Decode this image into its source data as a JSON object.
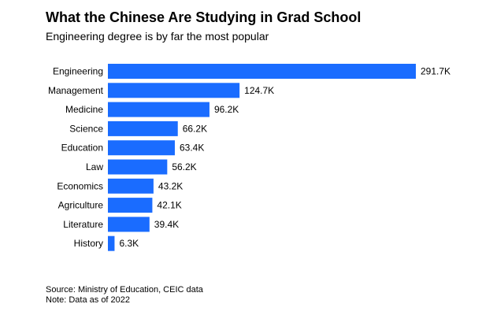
{
  "title": "What the Chinese Are Studying in Grad School",
  "subtitle": "Engineering degree is by far the most popular",
  "source": "Source: Ministry of Education, CEIC data",
  "note": "Note: Data as of 2022",
  "bar_color": "#1a6cff",
  "chart_data": {
    "type": "bar",
    "orientation": "horizontal",
    "unit": "K",
    "categories": [
      "Engineering",
      "Management",
      "Medicine",
      "Science",
      "Education",
      "Law",
      "Economics",
      "Agriculture",
      "Literature",
      "History"
    ],
    "values": [
      291.7,
      124.7,
      96.2,
      66.2,
      63.4,
      56.2,
      43.2,
      42.1,
      39.4,
      6.3
    ],
    "value_labels": [
      "291.7K",
      "124.7K",
      "96.2K",
      "66.2K",
      "63.4K",
      "56.2K",
      "43.2K",
      "42.1K",
      "39.4K",
      "6.3K"
    ],
    "title": "What the Chinese Are Studying in Grad School",
    "subtitle": "Engineering degree is by far the most popular",
    "xlabel": "",
    "ylabel": "",
    "xlim": [
      0,
      291.7
    ],
    "grid": false,
    "legend": "none"
  }
}
